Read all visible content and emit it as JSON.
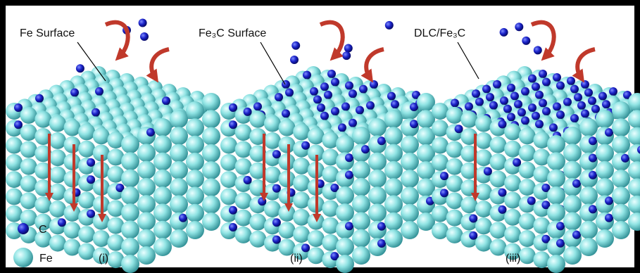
{
  "labels": {
    "fe_surface": "Fe Surface",
    "fe3c_surface": "Fe₃C Surface",
    "dlc_fe3c": "DLC/Fe₃C"
  },
  "legend": {
    "carbon": "C",
    "iron": "Fe"
  },
  "panels": [
    "(i)",
    "(ii)",
    "(iii)"
  ]
}
